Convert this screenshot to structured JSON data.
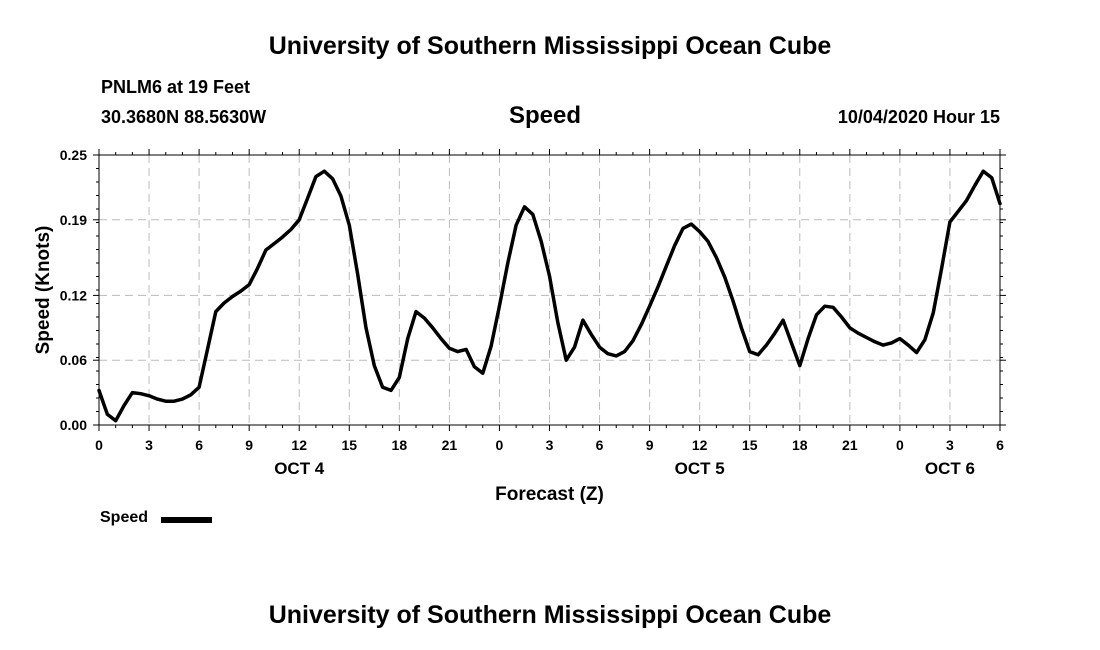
{
  "header": {
    "title": "University of Southern Mississippi Ocean Cube",
    "station_name": "PNLM6 at 19 Feet",
    "station_coords": "30.3680N 88.5630W",
    "variable": "Speed",
    "timestamp": "10/04/2020 Hour 15"
  },
  "footer": {
    "title": "University of Southern Mississippi Ocean Cube"
  },
  "legend": {
    "label": "Speed"
  },
  "colors": {
    "line": "#000000",
    "grid": "#bbbbbb"
  },
  "chart_data": {
    "type": "line",
    "title": "Speed",
    "xlabel": "Forecast (Z)",
    "ylabel": "Speed (Knots)",
    "xlim": [
      0,
      54
    ],
    "ylim": [
      0,
      0.25
    ],
    "yticks": [
      0.0,
      0.06,
      0.12,
      0.19,
      0.25
    ],
    "ytick_labels": [
      "0.00",
      "0.06",
      "0.12",
      "0.19",
      "0.25"
    ],
    "xtick_labels": [
      "0",
      "3",
      "6",
      "9",
      "12",
      "15",
      "18",
      "21",
      "0",
      "3",
      "6",
      "9",
      "12",
      "15",
      "18",
      "21",
      "0",
      "3",
      "6"
    ],
    "date_labels": [
      {
        "label": "OCT 4",
        "hour": 12
      },
      {
        "label": "OCT 5",
        "hour": 36
      },
      {
        "label": "OCT 6",
        "hour": 51
      }
    ],
    "grid": true,
    "legend_position": "bottom-left",
    "series": [
      {
        "name": "Speed",
        "x": [
          0,
          0.5,
          1,
          1.5,
          2,
          2.5,
          3,
          3.5,
          4,
          4.5,
          5,
          5.5,
          6,
          6.5,
          7,
          7.5,
          8,
          8.5,
          9,
          9.5,
          10,
          10.5,
          11,
          11.5,
          12,
          12.5,
          13,
          13.5,
          14,
          14.5,
          15,
          15.5,
          16,
          16.5,
          17,
          17.5,
          18,
          18.5,
          19,
          19.5,
          20,
          20.5,
          21,
          21.5,
          22,
          22.5,
          23,
          23.5,
          24,
          24.5,
          25,
          25.5,
          26,
          26.5,
          27,
          27.5,
          28,
          28.5,
          29,
          29.5,
          30,
          30.5,
          31,
          31.5,
          32,
          32.5,
          33,
          33.5,
          34,
          34.5,
          35,
          35.5,
          36,
          36.5,
          37,
          37.5,
          38,
          38.5,
          39,
          39.5,
          40,
          40.5,
          41,
          41.5,
          42,
          42.5,
          43,
          43.5,
          44,
          44.5,
          45,
          45.5,
          46,
          46.5,
          47,
          47.5,
          48,
          48.5,
          49,
          49.5,
          50,
          50.5,
          51,
          51.5,
          52,
          52.5,
          53,
          53.5,
          54
        ],
        "values": [
          0.032,
          0.01,
          0.004,
          0.018,
          0.03,
          0.029,
          0.027,
          0.024,
          0.022,
          0.022,
          0.024,
          0.028,
          0.035,
          0.07,
          0.105,
          0.113,
          0.119,
          0.124,
          0.13,
          0.145,
          0.162,
          0.168,
          0.174,
          0.181,
          0.19,
          0.21,
          0.23,
          0.235,
          0.228,
          0.212,
          0.185,
          0.14,
          0.09,
          0.055,
          0.035,
          0.032,
          0.044,
          0.08,
          0.105,
          0.099,
          0.09,
          0.08,
          0.071,
          0.068,
          0.07,
          0.054,
          0.048,
          0.073,
          0.11,
          0.15,
          0.185,
          0.202,
          0.195,
          0.17,
          0.138,
          0.095,
          0.06,
          0.072,
          0.097,
          0.084,
          0.072,
          0.066,
          0.064,
          0.068,
          0.078,
          0.093,
          0.11,
          0.128,
          0.147,
          0.166,
          0.182,
          0.186,
          0.179,
          0.17,
          0.155,
          0.137,
          0.115,
          0.09,
          0.068,
          0.065,
          0.074,
          0.085,
          0.097,
          0.076,
          0.055,
          0.08,
          0.102,
          0.11,
          0.109,
          0.1,
          0.09,
          0.085,
          0.081,
          0.077,
          0.074,
          0.076,
          0.08,
          0.074,
          0.067,
          0.079,
          0.104,
          0.145,
          0.188,
          0.198,
          0.208,
          0.222,
          0.235,
          0.229,
          0.205
        ]
      }
    ]
  }
}
